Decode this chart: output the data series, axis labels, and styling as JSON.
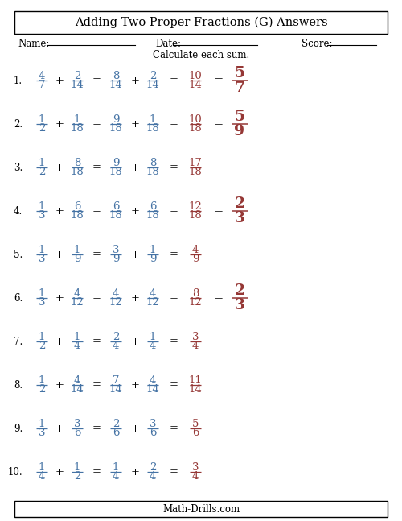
{
  "title": "Adding Two Proper Fractions (G) Answers",
  "subtitle": "Calculate each sum.",
  "name_label": "Name:",
  "date_label": "Date:",
  "score_label": "Score:",
  "footer": "Math-Drills.com",
  "bg_color": "#ffffff",
  "fraction_blue": "#4472a4",
  "fraction_red": "#953735",
  "problems": [
    {
      "num": "1.",
      "f1n": "4",
      "f1d": "7",
      "f2n": "2",
      "f2d": "14",
      "eq1n": "8",
      "eq1d": "14",
      "eq2n": "2",
      "eq2d": "14",
      "sumn": "10",
      "sumd": "14",
      "simn": "5",
      "simd": "7",
      "has_sim": true
    },
    {
      "num": "2.",
      "f1n": "1",
      "f1d": "2",
      "f2n": "1",
      "f2d": "18",
      "eq1n": "9",
      "eq1d": "18",
      "eq2n": "1",
      "eq2d": "18",
      "sumn": "10",
      "sumd": "18",
      "simn": "5",
      "simd": "9",
      "has_sim": true
    },
    {
      "num": "3.",
      "f1n": "1",
      "f1d": "2",
      "f2n": "8",
      "f2d": "18",
      "eq1n": "9",
      "eq1d": "18",
      "eq2n": "8",
      "eq2d": "18",
      "sumn": "17",
      "sumd": "18",
      "simn": "",
      "simd": "",
      "has_sim": false
    },
    {
      "num": "4.",
      "f1n": "1",
      "f1d": "3",
      "f2n": "6",
      "f2d": "18",
      "eq1n": "6",
      "eq1d": "18",
      "eq2n": "6",
      "eq2d": "18",
      "sumn": "12",
      "sumd": "18",
      "simn": "2",
      "simd": "3",
      "has_sim": true
    },
    {
      "num": "5.",
      "f1n": "1",
      "f1d": "3",
      "f2n": "1",
      "f2d": "9",
      "eq1n": "3",
      "eq1d": "9",
      "eq2n": "1",
      "eq2d": "9",
      "sumn": "4",
      "sumd": "9",
      "simn": "",
      "simd": "",
      "has_sim": false
    },
    {
      "num": "6.",
      "f1n": "1",
      "f1d": "3",
      "f2n": "4",
      "f2d": "12",
      "eq1n": "4",
      "eq1d": "12",
      "eq2n": "4",
      "eq2d": "12",
      "sumn": "8",
      "sumd": "12",
      "simn": "2",
      "simd": "3",
      "has_sim": true
    },
    {
      "num": "7.",
      "f1n": "1",
      "f1d": "2",
      "f2n": "1",
      "f2d": "4",
      "eq1n": "2",
      "eq1d": "4",
      "eq2n": "1",
      "eq2d": "4",
      "sumn": "3",
      "sumd": "4",
      "simn": "",
      "simd": "",
      "has_sim": false
    },
    {
      "num": "8.",
      "f1n": "1",
      "f1d": "2",
      "f2n": "4",
      "f2d": "14",
      "eq1n": "7",
      "eq1d": "14",
      "eq2n": "4",
      "eq2d": "14",
      "sumn": "11",
      "sumd": "14",
      "simn": "",
      "simd": "",
      "has_sim": false
    },
    {
      "num": "9.",
      "f1n": "1",
      "f1d": "3",
      "f2n": "3",
      "f2d": "6",
      "eq1n": "2",
      "eq1d": "6",
      "eq2n": "3",
      "eq2d": "6",
      "sumn": "5",
      "sumd": "6",
      "simn": "",
      "simd": "",
      "has_sim": false
    },
    {
      "num": "10.",
      "f1n": "1",
      "f1d": "4",
      "f2n": "1",
      "f2d": "2",
      "eq1n": "1",
      "eq1d": "4",
      "eq2n": "2",
      "eq2d": "4",
      "sumn": "3",
      "sumd": "4",
      "simn": "",
      "simd": "",
      "has_sim": false
    }
  ]
}
